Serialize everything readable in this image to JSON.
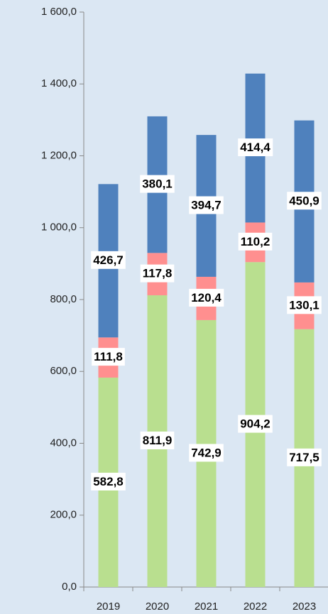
{
  "chart_data": {
    "type": "stacked_bar",
    "categories": [
      "2019",
      "2020",
      "2021",
      "2022",
      "2023"
    ],
    "series": [
      {
        "color": "#b9df8f",
        "values": [
          582.8,
          811.9,
          742.9,
          904.2,
          717.5
        ],
        "value_labels": [
          "582,8",
          "811,9",
          "742,9",
          "904,2",
          "717,5"
        ]
      },
      {
        "color": "#ff8f8f",
        "values": [
          111.8,
          117.8,
          120.4,
          110.2,
          130.1
        ],
        "value_labels": [
          "111,8",
          "117,8",
          "120,4",
          "110,2",
          "130,1"
        ]
      },
      {
        "color": "#4f81bd",
        "values": [
          426.7,
          380.1,
          394.7,
          414.4,
          450.9
        ],
        "value_labels": [
          "426,7",
          "380,1",
          "394,7",
          "414,4",
          "450,9"
        ]
      }
    ],
    "ylim": [
      0,
      1600
    ],
    "yticks": [
      {
        "value": 0,
        "label": "0,0"
      },
      {
        "value": 200,
        "label": "200,0"
      },
      {
        "value": 400,
        "label": "400,0"
      },
      {
        "value": 600,
        "label": "600,0"
      },
      {
        "value": 800,
        "label": "800,0"
      },
      {
        "value": 1000,
        "label": "1 000,0"
      },
      {
        "value": 1200,
        "label": "1 200,0"
      },
      {
        "value": 1400,
        "label": "1 400,0"
      },
      {
        "value": 1600,
        "label": "1 600,0"
      }
    ]
  }
}
